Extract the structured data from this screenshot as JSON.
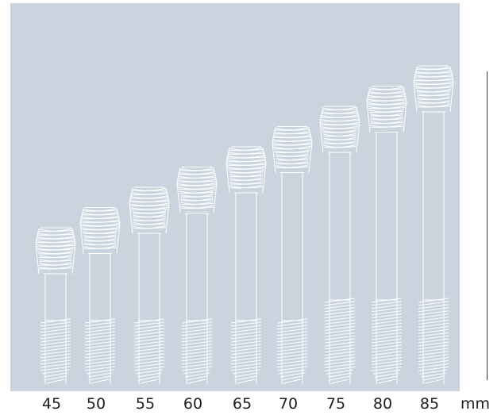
{
  "figure": {
    "screws": [
      {
        "length": "45"
      },
      {
        "length": "50"
      },
      {
        "length": "55"
      },
      {
        "length": "60"
      },
      {
        "length": "65"
      },
      {
        "length": "70"
      },
      {
        "length": "75"
      },
      {
        "length": "80"
      },
      {
        "length": "85"
      }
    ],
    "unit": "mm",
    "colors": {
      "background": "#cad4de",
      "screw": "#ffffff",
      "text": "#1e1e1e"
    }
  }
}
